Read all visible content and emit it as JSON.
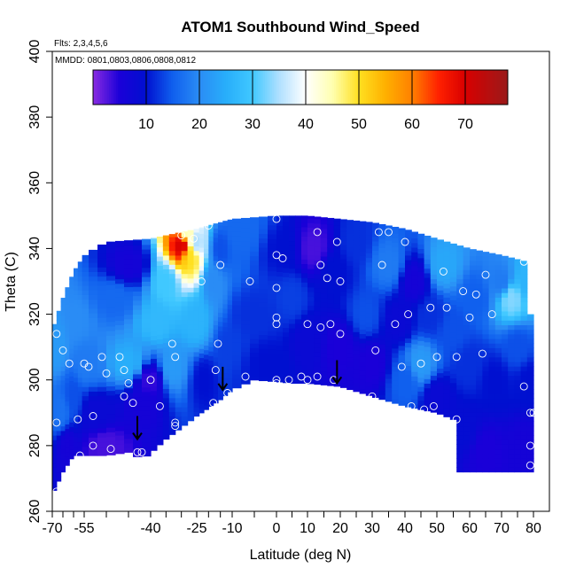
{
  "chart_data": {
    "type": "heatmap",
    "title": "ATOM1 Southbound Wind_Speed",
    "subtitle": "Flts: 2,3,4,5,6",
    "annotation": "MMDD: 0801,0803,0806,0808,0812",
    "xlabel": "Latitude (deg N)",
    "ylabel": "Theta (C)",
    "xlim": [
      -70,
      80
    ],
    "ylim": [
      260,
      400
    ],
    "x_ticks": [
      -70,
      -55,
      -40,
      -25,
      -10,
      0,
      10,
      20,
      30,
      40,
      50,
      60,
      70,
      80
    ],
    "x_tick_labels": [
      "-70",
      "-55",
      "-40",
      "-25",
      "-10",
      "0",
      "10",
      "20",
      "30",
      "40",
      "50",
      "60",
      "70",
      "80"
    ],
    "x_minor_ticks": [
      -65,
      -60,
      -50,
      -45,
      -35,
      -30,
      -20,
      -15,
      -5,
      5,
      15,
      25,
      35,
      45,
      55,
      65,
      75
    ],
    "y_ticks": [
      260,
      280,
      300,
      320,
      340,
      360,
      380,
      400
    ],
    "y_tick_labels": [
      "260",
      "280",
      "300",
      "320",
      "340",
      "360",
      "380",
      "400"
    ],
    "colorbar": {
      "range": [
        0,
        78
      ],
      "ticks": [
        10,
        20,
        30,
        40,
        50,
        60,
        70
      ],
      "tick_labels": [
        "10",
        "20",
        "30",
        "40",
        "50",
        "60",
        "70"
      ],
      "stops": [
        {
          "v": 0,
          "c": "#8a2be2"
        },
        {
          "v": 5,
          "c": "#1a00d8"
        },
        {
          "v": 10,
          "c": "#0010d0"
        },
        {
          "v": 15,
          "c": "#1060ee"
        },
        {
          "v": 20,
          "c": "#2a8cf5"
        },
        {
          "v": 25,
          "c": "#28aefa"
        },
        {
          "v": 30,
          "c": "#40c8ff"
        },
        {
          "v": 35,
          "c": "#b0e0ff"
        },
        {
          "v": 40,
          "c": "#ffffff"
        },
        {
          "v": 45,
          "c": "#ffffb0"
        },
        {
          "v": 50,
          "c": "#ffe020"
        },
        {
          "v": 55,
          "c": "#ffb000"
        },
        {
          "v": 60,
          "c": "#ff8000"
        },
        {
          "v": 65,
          "c": "#ff2000"
        },
        {
          "v": 70,
          "c": "#d80000"
        },
        {
          "v": 78,
          "c": "#9a1a1a"
        }
      ]
    },
    "domain_top": [
      [
        -70,
        315
      ],
      [
        -65,
        325
      ],
      [
        -60,
        333
      ],
      [
        -55,
        338
      ],
      [
        -50,
        342
      ],
      [
        -40,
        343
      ],
      [
        -30,
        345
      ],
      [
        -20,
        347
      ],
      [
        -10,
        349
      ],
      [
        0,
        350
      ],
      [
        10,
        350
      ],
      [
        20,
        349
      ],
      [
        30,
        348
      ],
      [
        40,
        346
      ],
      [
        50,
        343
      ],
      [
        60,
        340
      ],
      [
        70,
        338
      ],
      [
        78,
        336
      ],
      [
        79,
        320
      ],
      [
        80,
        315
      ]
    ],
    "domain_bottom": [
      [
        -70,
        265
      ],
      [
        -65,
        272
      ],
      [
        -60,
        277
      ],
      [
        -50,
        277
      ],
      [
        -45,
        278
      ],
      [
        -42,
        276
      ],
      [
        -35,
        282
      ],
      [
        -25,
        289
      ],
      [
        -15,
        294
      ],
      [
        -5,
        300
      ],
      [
        5,
        299
      ],
      [
        10,
        299
      ],
      [
        20,
        298
      ],
      [
        30,
        295
      ],
      [
        40,
        292
      ],
      [
        50,
        290
      ],
      [
        55,
        288
      ],
      [
        56,
        272
      ],
      [
        80,
        272
      ]
    ],
    "anchors": [
      {
        "lat": -68,
        "theta": 310,
        "v": 22
      },
      {
        "lat": -66,
        "theta": 290,
        "v": 17
      },
      {
        "lat": -63,
        "theta": 280,
        "v": 6
      },
      {
        "lat": -60,
        "theta": 295,
        "v": 14
      },
      {
        "lat": -58,
        "theta": 318,
        "v": 20
      },
      {
        "lat": -55,
        "theta": 305,
        "v": 18
      },
      {
        "lat": -52,
        "theta": 290,
        "v": 8
      },
      {
        "lat": -50,
        "theta": 280,
        "v": 3
      },
      {
        "lat": -48,
        "theta": 325,
        "v": 16
      },
      {
        "lat": -45,
        "theta": 305,
        "v": 25
      },
      {
        "lat": -45,
        "theta": 335,
        "v": 6
      },
      {
        "lat": -42,
        "theta": 292,
        "v": 6
      },
      {
        "lat": -40,
        "theta": 300,
        "v": 4
      },
      {
        "lat": -38,
        "theta": 318,
        "v": 27
      },
      {
        "lat": -35,
        "theta": 330,
        "v": 30
      },
      {
        "lat": -33,
        "theta": 304,
        "v": 22
      },
      {
        "lat": -30,
        "theta": 341,
        "v": 70
      },
      {
        "lat": -28,
        "theta": 345,
        "v": 44
      },
      {
        "lat": -27,
        "theta": 338,
        "v": 50
      },
      {
        "lat": -25,
        "theta": 342,
        "v": 35
      },
      {
        "lat": -25,
        "theta": 318,
        "v": 26
      },
      {
        "lat": -22,
        "theta": 300,
        "v": 10
      },
      {
        "lat": -18,
        "theta": 330,
        "v": 20
      },
      {
        "lat": -15,
        "theta": 340,
        "v": 14
      },
      {
        "lat": -12,
        "theta": 310,
        "v": 13
      },
      {
        "lat": -8,
        "theta": 345,
        "v": 16
      },
      {
        "lat": -5,
        "theta": 320,
        "v": 12
      },
      {
        "lat": -2,
        "theta": 305,
        "v": 10
      },
      {
        "lat": 2,
        "theta": 340,
        "v": 10
      },
      {
        "lat": 5,
        "theta": 325,
        "v": 13
      },
      {
        "lat": 10,
        "theta": 312,
        "v": 8
      },
      {
        "lat": 12,
        "theta": 340,
        "v": 3
      },
      {
        "lat": 18,
        "theta": 333,
        "v": 10
      },
      {
        "lat": 20,
        "theta": 310,
        "v": 5
      },
      {
        "lat": 25,
        "theta": 342,
        "v": 12
      },
      {
        "lat": 28,
        "theta": 320,
        "v": 14
      },
      {
        "lat": 30,
        "theta": 305,
        "v": 5
      },
      {
        "lat": 35,
        "theta": 335,
        "v": 18
      },
      {
        "lat": 38,
        "theta": 318,
        "v": 8
      },
      {
        "lat": 40,
        "theta": 300,
        "v": 15
      },
      {
        "lat": 43,
        "theta": 330,
        "v": 6
      },
      {
        "lat": 45,
        "theta": 305,
        "v": 22
      },
      {
        "lat": 48,
        "theta": 320,
        "v": 12
      },
      {
        "lat": 50,
        "theta": 295,
        "v": 8
      },
      {
        "lat": 52,
        "theta": 335,
        "v": 24
      },
      {
        "lat": 55,
        "theta": 315,
        "v": 14
      },
      {
        "lat": 58,
        "theta": 285,
        "v": 9
      },
      {
        "lat": 60,
        "theta": 305,
        "v": 12
      },
      {
        "lat": 62,
        "theta": 325,
        "v": 15
      },
      {
        "lat": 65,
        "theta": 278,
        "v": 5
      },
      {
        "lat": 68,
        "theta": 300,
        "v": 10
      },
      {
        "lat": 70,
        "theta": 330,
        "v": 18
      },
      {
        "lat": 73,
        "theta": 325,
        "v": 33
      },
      {
        "lat": 75,
        "theta": 310,
        "v": 14
      },
      {
        "lat": 77,
        "theta": 280,
        "v": 6
      },
      {
        "lat": 78,
        "theta": 330,
        "v": 26
      },
      {
        "lat": 79,
        "theta": 300,
        "v": 10
      }
    ],
    "observations": [
      [
        -68,
        314
      ],
      [
        -68,
        287
      ],
      [
        -68,
        266
      ],
      [
        -65,
        309
      ],
      [
        -62,
        305
      ],
      [
        -58,
        288
      ],
      [
        -57,
        277
      ],
      [
        -55,
        305
      ],
      [
        -54,
        304
      ],
      [
        -53,
        289
      ],
      [
        -53,
        280
      ],
      [
        -51,
        307
      ],
      [
        -50,
        302
      ],
      [
        -49,
        279
      ],
      [
        -47,
        307
      ],
      [
        -46,
        303
      ],
      [
        -46,
        295
      ],
      [
        -45,
        299
      ],
      [
        -44,
        293
      ],
      [
        -43,
        278
      ],
      [
        -42,
        278
      ],
      [
        -40,
        300
      ],
      [
        -37,
        292
      ],
      [
        -33,
        311
      ],
      [
        -32,
        307
      ],
      [
        -32,
        287
      ],
      [
        -32,
        286
      ],
      [
        -30,
        344
      ],
      [
        -26,
        343
      ],
      [
        -23,
        330
      ],
      [
        -20,
        347
      ],
      [
        -18,
        293
      ],
      [
        -17,
        303
      ],
      [
        -16,
        311
      ],
      [
        -15,
        335
      ],
      [
        -12,
        296
      ],
      [
        -7,
        301
      ],
      [
        -6,
        330
      ],
      [
        0,
        349
      ],
      [
        0,
        338
      ],
      [
        0,
        328
      ],
      [
        0,
        319
      ],
      [
        0,
        317
      ],
      [
        0,
        300
      ],
      [
        0,
        299
      ],
      [
        2,
        337
      ],
      [
        4,
        300
      ],
      [
        8,
        301
      ],
      [
        10,
        300
      ],
      [
        10,
        317
      ],
      [
        13,
        345
      ],
      [
        13,
        301
      ],
      [
        14,
        335
      ],
      [
        14,
        316
      ],
      [
        16,
        331
      ],
      [
        17,
        317
      ],
      [
        18,
        300
      ],
      [
        19,
        342
      ],
      [
        20,
        330
      ],
      [
        20,
        314
      ],
      [
        30,
        295
      ],
      [
        31,
        309
      ],
      [
        32,
        345
      ],
      [
        33,
        335
      ],
      [
        35,
        345
      ],
      [
        37,
        317
      ],
      [
        39,
        304
      ],
      [
        40,
        342
      ],
      [
        41,
        320
      ],
      [
        42,
        292
      ],
      [
        45,
        305
      ],
      [
        46,
        291
      ],
      [
        48,
        322
      ],
      [
        49,
        292
      ],
      [
        50,
        307
      ],
      [
        52,
        333
      ],
      [
        53,
        322
      ],
      [
        56,
        288
      ],
      [
        56,
        307
      ],
      [
        58,
        327
      ],
      [
        60,
        319
      ],
      [
        62,
        326
      ],
      [
        64,
        308
      ],
      [
        65,
        332
      ],
      [
        67,
        320
      ],
      [
        77,
        336
      ],
      [
        77,
        298
      ],
      [
        79,
        290
      ],
      [
        79,
        280
      ],
      [
        79,
        274
      ],
      [
        80,
        290
      ]
    ],
    "arrows": [
      [
        -43,
        289
      ],
      [
        -14,
        304
      ],
      [
        19,
        306
      ]
    ],
    "colorbar_position": "top",
    "grid": false
  }
}
